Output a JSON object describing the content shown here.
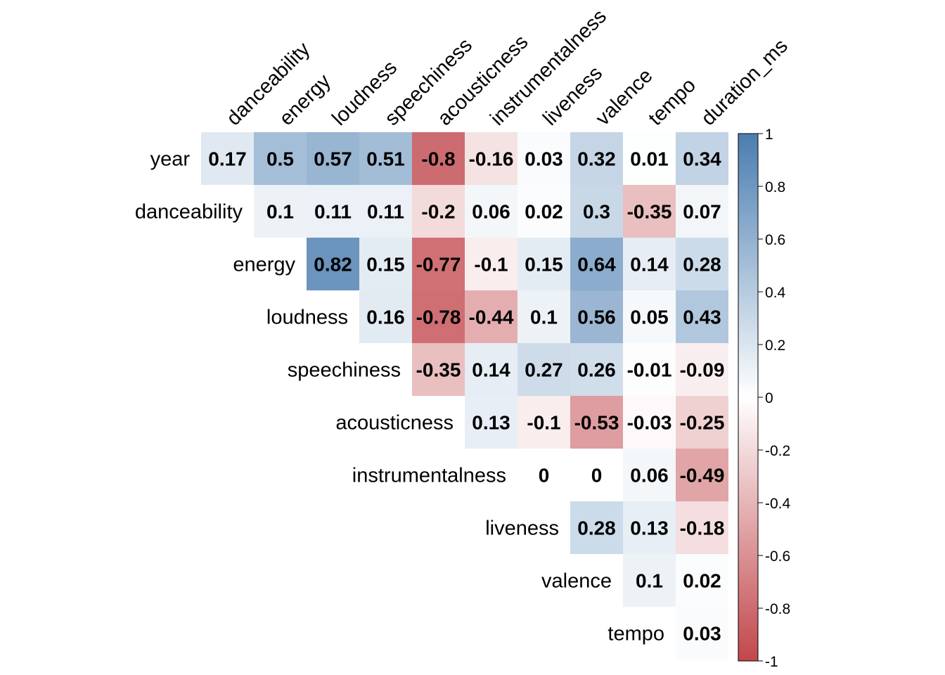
{
  "chart_data": {
    "type": "heatmap",
    "subtype": "upper-triangle correlation matrix",
    "row_labels": [
      "year",
      "danceability",
      "energy",
      "loudness",
      "speechiness",
      "acousticness",
      "instrumentalness",
      "liveness",
      "valence",
      "tempo"
    ],
    "col_labels": [
      "danceability",
      "energy",
      "loudness",
      "speechiness",
      "acousticness",
      "instrumentalness",
      "liveness",
      "valence",
      "tempo",
      "duration_ms"
    ],
    "values": [
      [
        0.17,
        0.5,
        0.57,
        0.51,
        -0.8,
        -0.16,
        0.03,
        0.32,
        0.01,
        0.34
      ],
      [
        null,
        0.1,
        0.11,
        0.11,
        -0.2,
        0.06,
        0.02,
        0.3,
        -0.35,
        0.07
      ],
      [
        null,
        null,
        0.82,
        0.15,
        -0.77,
        -0.1,
        0.15,
        0.64,
        0.14,
        0.28
      ],
      [
        null,
        null,
        null,
        0.16,
        -0.78,
        -0.44,
        0.1,
        0.56,
        0.05,
        0.43
      ],
      [
        null,
        null,
        null,
        null,
        -0.35,
        0.14,
        0.27,
        0.26,
        -0.01,
        -0.09
      ],
      [
        null,
        null,
        null,
        null,
        null,
        0.13,
        -0.1,
        -0.53,
        -0.03,
        -0.25
      ],
      [
        null,
        null,
        null,
        null,
        null,
        null,
        0,
        0,
        0.06,
        -0.49
      ],
      [
        null,
        null,
        null,
        null,
        null,
        null,
        null,
        0.28,
        0.13,
        -0.18
      ],
      [
        null,
        null,
        null,
        null,
        null,
        null,
        null,
        null,
        0.1,
        0.02
      ],
      [
        null,
        null,
        null,
        null,
        null,
        null,
        null,
        null,
        null,
        0.03
      ]
    ],
    "color_scale": {
      "min": -1,
      "max": 1,
      "low_color": "#C1474C",
      "mid_color": "#FFFFFF",
      "high_color": "#4A7DB0"
    },
    "legend": {
      "position": "right",
      "ticks": [
        "1",
        "0.8",
        "0.6",
        "0.4",
        "0.2",
        "0",
        "-0.2",
        "-0.4",
        "-0.6",
        "-0.8",
        "-1"
      ]
    }
  }
}
